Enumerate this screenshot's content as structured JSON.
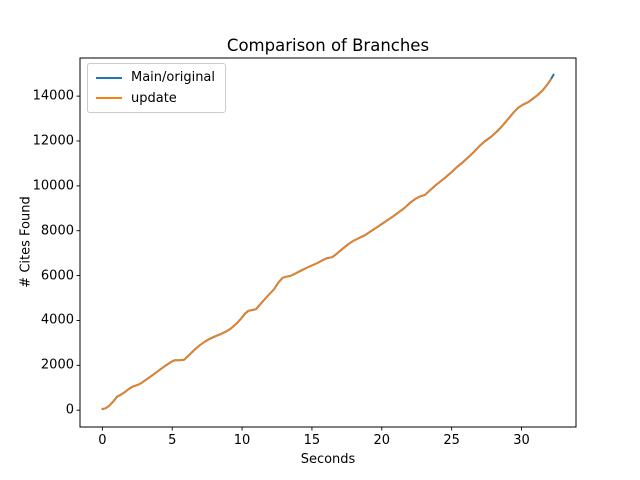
{
  "figure": {
    "background": "#ffffff",
    "frame_color": "#000000"
  },
  "chart_data": {
    "type": "line",
    "title": "Comparison of Branches",
    "xlabel": "Seconds",
    "ylabel": "# Cites Found",
    "grid": false,
    "legend_position": "upper left",
    "legend_border_color": "#cccccc",
    "x_ticks": [
      0,
      5,
      10,
      15,
      20,
      25,
      30
    ],
    "y_ticks": [
      0,
      2000,
      4000,
      6000,
      8000,
      10000,
      12000,
      14000
    ],
    "xlim": [
      -1.6,
      33.9
    ],
    "ylim": [
      -750,
      15700
    ],
    "series": [
      {
        "name": "Main/original",
        "color": "#1f77b4",
        "x": [
          0,
          0.25,
          0.5,
          0.8,
          1.05,
          1.3,
          1.6,
          1.9,
          2.2,
          2.5,
          2.8,
          3.1,
          3.5,
          3.9,
          4.3,
          4.7,
          5.0,
          5.2,
          5.5,
          5.85,
          6.1,
          6.5,
          6.9,
          7.3,
          7.7,
          8.1,
          8.5,
          8.9,
          9.2,
          9.6,
          9.9,
          10.2,
          10.45,
          10.7,
          11.0,
          11.3,
          11.7,
          12.0,
          12.3,
          12.6,
          12.9,
          13.15,
          13.45,
          13.8,
          14.2,
          14.6,
          15.0,
          15.4,
          15.8,
          16.1,
          16.45,
          16.8,
          17.2,
          17.6,
          18.0,
          18.4,
          18.8,
          19.2,
          19.6,
          20.0,
          20.4,
          20.8,
          21.2,
          21.6,
          22.0,
          22.4,
          22.75,
          23.1,
          23.45,
          23.8,
          24.2,
          24.6,
          25.0,
          25.4,
          25.8,
          26.2,
          26.6,
          27.0,
          27.4,
          27.8,
          28.2,
          28.6,
          29.0,
          29.4,
          29.75,
          30.1,
          30.45,
          30.8,
          31.15,
          31.5,
          31.8,
          32.1,
          32.3
        ],
        "y": [
          50,
          90,
          200,
          400,
          600,
          680,
          800,
          950,
          1060,
          1120,
          1210,
          1350,
          1520,
          1700,
          1890,
          2060,
          2180,
          2230,
          2230,
          2250,
          2390,
          2640,
          2860,
          3040,
          3180,
          3300,
          3400,
          3520,
          3640,
          3860,
          4060,
          4300,
          4430,
          4460,
          4500,
          4720,
          5000,
          5200,
          5400,
          5690,
          5900,
          5950,
          5980,
          6090,
          6220,
          6340,
          6450,
          6560,
          6700,
          6780,
          6820,
          6990,
          7200,
          7400,
          7560,
          7680,
          7800,
          7970,
          8130,
          8300,
          8470,
          8640,
          8820,
          9000,
          9230,
          9420,
          9530,
          9600,
          9800,
          10000,
          10200,
          10400,
          10620,
          10850,
          11050,
          11280,
          11520,
          11780,
          12000,
          12180,
          12400,
          12650,
          12950,
          13250,
          13480,
          13620,
          13720,
          13880,
          14050,
          14250,
          14480,
          14750,
          14960
        ]
      },
      {
        "name": "update",
        "color": "#ff7f0e",
        "x": [
          0,
          0.25,
          0.5,
          0.8,
          1.05,
          1.3,
          1.6,
          1.9,
          2.2,
          2.5,
          2.8,
          3.1,
          3.5,
          3.9,
          4.3,
          4.7,
          5.0,
          5.2,
          5.5,
          5.85,
          6.1,
          6.5,
          6.9,
          7.3,
          7.7,
          8.1,
          8.5,
          8.9,
          9.2,
          9.6,
          9.9,
          10.2,
          10.45,
          10.7,
          11.0,
          11.3,
          11.7,
          12.0,
          12.3,
          12.6,
          12.9,
          13.15,
          13.45,
          13.8,
          14.2,
          14.6,
          15.0,
          15.4,
          15.8,
          16.1,
          16.45,
          16.8,
          17.2,
          17.6,
          18.0,
          18.4,
          18.8,
          19.2,
          19.6,
          20.0,
          20.4,
          20.8,
          21.2,
          21.6,
          22.0,
          22.4,
          22.75,
          23.1,
          23.45,
          23.8,
          24.2,
          24.6,
          25.0,
          25.4,
          25.8,
          26.2,
          26.6,
          27.0,
          27.4,
          27.8,
          28.2,
          28.6,
          29.0,
          29.4,
          29.75,
          30.1,
          30.45,
          30.8,
          31.15,
          31.5,
          31.8,
          32.1
        ],
        "y": [
          50,
          90,
          200,
          400,
          600,
          680,
          800,
          950,
          1060,
          1120,
          1210,
          1350,
          1520,
          1700,
          1890,
          2060,
          2180,
          2230,
          2230,
          2250,
          2390,
          2640,
          2860,
          3040,
          3180,
          3300,
          3400,
          3520,
          3640,
          3860,
          4060,
          4300,
          4430,
          4460,
          4500,
          4720,
          5000,
          5200,
          5400,
          5690,
          5900,
          5950,
          5980,
          6090,
          6220,
          6340,
          6450,
          6560,
          6700,
          6780,
          6820,
          6990,
          7200,
          7400,
          7560,
          7680,
          7800,
          7970,
          8130,
          8300,
          8470,
          8640,
          8820,
          9000,
          9230,
          9420,
          9530,
          9600,
          9800,
          10000,
          10200,
          10400,
          10620,
          10850,
          11050,
          11280,
          11520,
          11780,
          12000,
          12180,
          12400,
          12650,
          12950,
          13250,
          13480,
          13620,
          13720,
          13880,
          14050,
          14250,
          14480,
          14750
        ]
      }
    ]
  }
}
